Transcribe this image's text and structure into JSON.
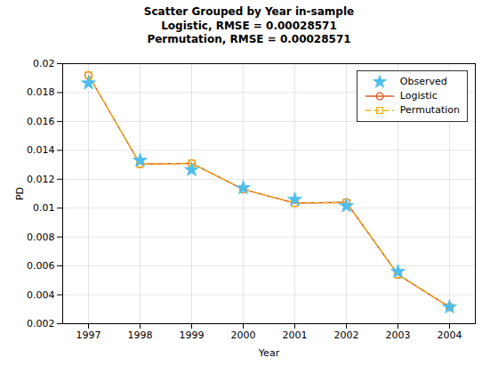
{
  "chart_data": {
    "type": "line",
    "title": "Scatter Grouped by Year in-sample\nLogistic, RMSE = 0.00028571\nPermutation, RMSE = 0.00028571",
    "xlabel": "Year",
    "ylabel": "PD",
    "x": [
      1997,
      1998,
      1999,
      2000,
      2001,
      2002,
      2003,
      2004
    ],
    "series": [
      {
        "name": "Observed",
        "color": "#4DBEEE",
        "marker": "star",
        "line_style": "none",
        "values": [
          0.01865,
          0.0133,
          0.01265,
          0.0114,
          0.0106,
          0.01015,
          0.0056,
          0.00315
        ]
      },
      {
        "name": "Logistic",
        "color": "#D95319",
        "marker": "circle",
        "line_style": "solid",
        "values": [
          0.0192,
          0.01305,
          0.0131,
          0.0113,
          0.01035,
          0.0104,
          0.0054,
          0.00315
        ]
      },
      {
        "name": "Permutation",
        "color": "#EDB120",
        "marker": "square",
        "line_style": "dashed",
        "values": [
          0.0192,
          0.01305,
          0.0131,
          0.0113,
          0.01035,
          0.0104,
          0.0054,
          0.00315
        ]
      }
    ],
    "xlim": [
      1996.5,
      2004.5
    ],
    "xticks": [
      1997,
      1998,
      1999,
      2000,
      2001,
      2002,
      2003,
      2004
    ],
    "ylim": [
      0.002,
      0.02
    ],
    "yticks": [
      0.002,
      0.004,
      0.006,
      0.008,
      0.01,
      0.012,
      0.014,
      0.016,
      0.018,
      0.02
    ],
    "grid": true,
    "legend": "upper right"
  }
}
